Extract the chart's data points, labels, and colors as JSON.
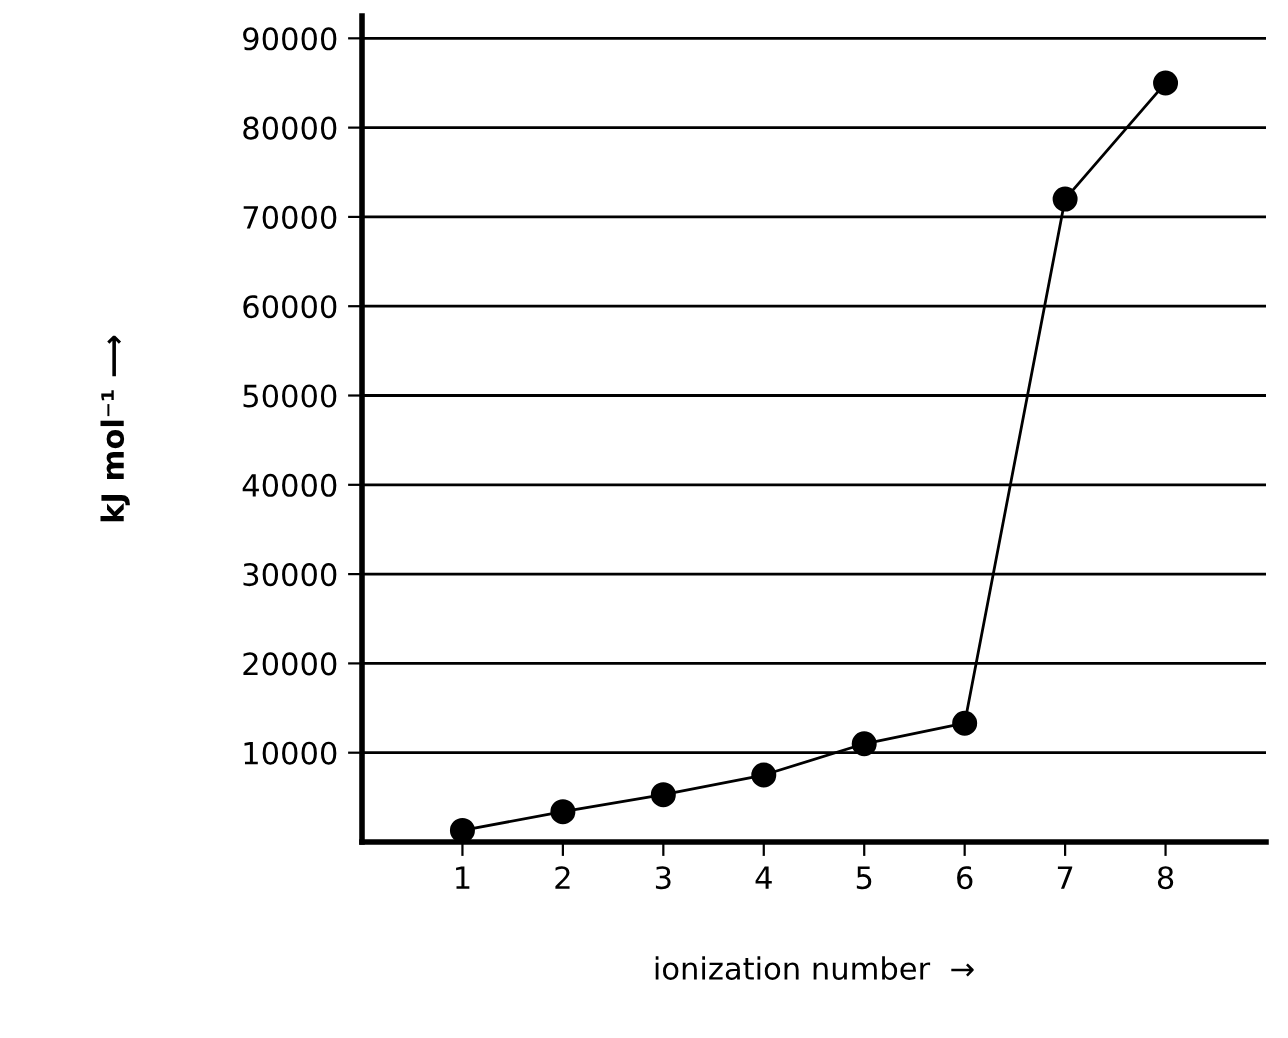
{
  "chart_data": {
    "type": "line",
    "xlabel": "ionization number  →",
    "ylabel": "kJ mol⁻¹ ⟶",
    "x": [
      1,
      2,
      3,
      4,
      5,
      6,
      7,
      8
    ],
    "values": [
      1300,
      3400,
      5300,
      7500,
      11000,
      13300,
      72000,
      85000
    ],
    "color": "#000000",
    "marker": "circle",
    "line_style": "solid",
    "xlim": [
      0,
      9
    ],
    "xticks": [
      1,
      2,
      3,
      4,
      5,
      6,
      7,
      8
    ],
    "ylim": [
      0,
      92500
    ],
    "yticks": [
      10000,
      20000,
      30000,
      40000,
      50000,
      60000,
      70000,
      80000,
      90000
    ],
    "grid": "y"
  }
}
